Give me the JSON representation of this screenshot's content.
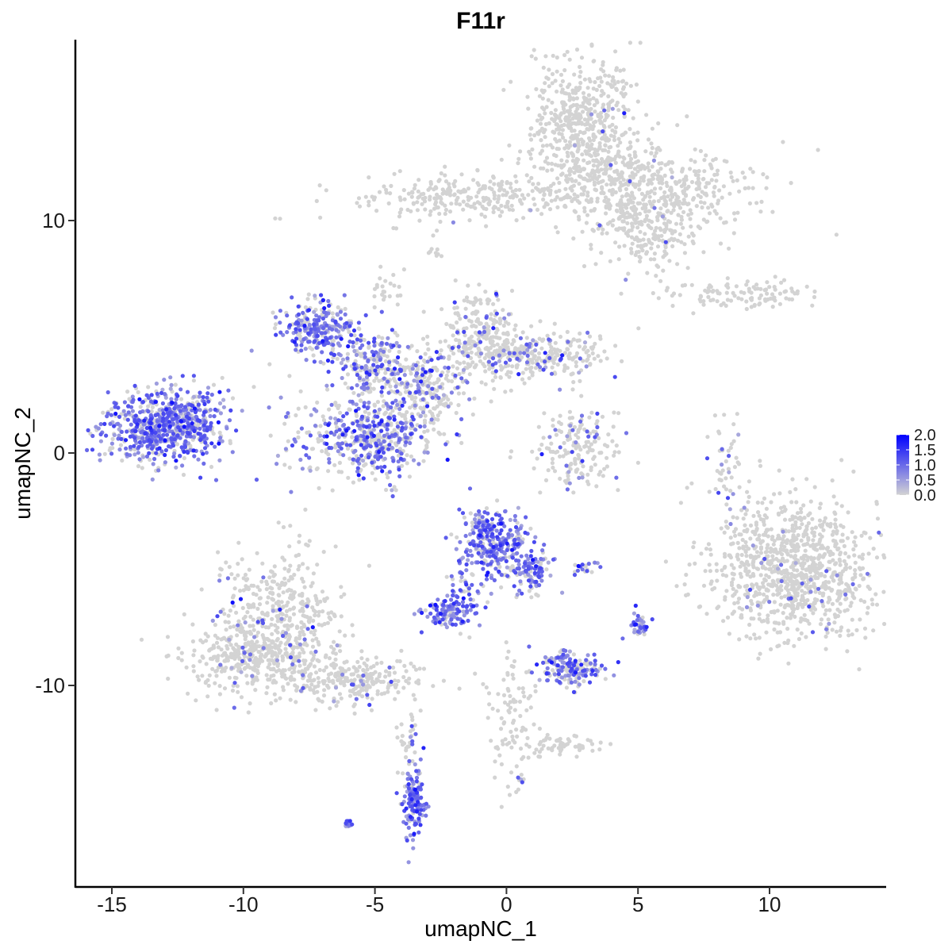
{
  "chart_data": {
    "type": "scatter",
    "title": "F11r",
    "xlabel": "umapNC_1",
    "ylabel": "umapNC_2",
    "xlim": [
      -16.5,
      14.5
    ],
    "ylim": [
      -18.5,
      17.5
    ],
    "x_ticks": [
      -15,
      -10,
      -5,
      0,
      5,
      10
    ],
    "x_tick_labels": [
      "-15",
      "-10",
      "-5",
      "0",
      "5",
      "10"
    ],
    "y_ticks": [
      -10,
      0,
      10
    ],
    "y_tick_labels": [
      "-10",
      "0",
      "10"
    ],
    "grid": false,
    "color_scale": {
      "low": "#d3d3d3",
      "high": "#0000ff",
      "min": 0.0,
      "max": 2.0,
      "breaks": [
        2.0,
        1.5,
        1.0,
        0.5,
        0.0
      ],
      "break_labels": [
        "2.0",
        "1.5",
        "1.0",
        "0.5",
        "0.0"
      ],
      "legend_position": "right"
    },
    "clusters": [
      {
        "cx": 3.0,
        "cy": 14.3,
        "sx": 1.0,
        "sy": 1.6,
        "n": 520,
        "expr": 0.02
      },
      {
        "cx": 5.0,
        "cy": 11.6,
        "sx": 2.2,
        "sy": 0.9,
        "n": 500,
        "expr": 0.02
      },
      {
        "cx": -1.5,
        "cy": 11.0,
        "sx": 2.4,
        "sy": 0.5,
        "n": 260,
        "expr": 0.02
      },
      {
        "cx": 5.5,
        "cy": 9.5,
        "sx": 1.2,
        "sy": 0.8,
        "n": 220,
        "expr": 0.03
      },
      {
        "cx": 9.0,
        "cy": 6.8,
        "sx": 1.6,
        "sy": 0.3,
        "n": 110,
        "expr": 0.0
      },
      {
        "cx": -13.2,
        "cy": 1.1,
        "sx": 1.1,
        "sy": 0.8,
        "n": 620,
        "expr": 0.72
      },
      {
        "cx": -11.8,
        "cy": 1.4,
        "sx": 0.5,
        "sy": 0.8,
        "n": 120,
        "expr": 0.65
      },
      {
        "cx": -7.1,
        "cy": 5.3,
        "sx": 0.8,
        "sy": 0.6,
        "n": 260,
        "expr": 0.68
      },
      {
        "cx": -5.0,
        "cy": 3.8,
        "sx": 0.7,
        "sy": 0.6,
        "n": 190,
        "expr": 0.5
      },
      {
        "cx": -5.6,
        "cy": 0.9,
        "sx": 1.4,
        "sy": 1.0,
        "n": 360,
        "expr": 0.42
      },
      {
        "cx": -4.6,
        "cy": 0.6,
        "sx": 0.7,
        "sy": 0.8,
        "n": 170,
        "expr": 0.62
      },
      {
        "cx": -3.0,
        "cy": 3.0,
        "sx": 0.8,
        "sy": 0.9,
        "n": 240,
        "expr": 0.24
      },
      {
        "cx": -1.0,
        "cy": 5.0,
        "sx": 0.7,
        "sy": 1.0,
        "n": 210,
        "expr": 0.12
      },
      {
        "cx": 1.0,
        "cy": 4.2,
        "sx": 1.5,
        "sy": 0.5,
        "n": 300,
        "expr": 0.15
      },
      {
        "cx": 2.8,
        "cy": 0.2,
        "sx": 0.8,
        "sy": 0.9,
        "n": 170,
        "expr": 0.15
      },
      {
        "cx": 11.0,
        "cy": -5.0,
        "sx": 1.6,
        "sy": 1.5,
        "n": 1000,
        "expr": 0.03
      },
      {
        "cx": 8.3,
        "cy": -0.5,
        "sx": 0.3,
        "sy": 1.0,
        "n": 40,
        "expr": 0.12
      },
      {
        "cx": -0.5,
        "cy": -3.8,
        "sx": 0.6,
        "sy": 0.8,
        "n": 280,
        "expr": 0.78
      },
      {
        "cx": 0.9,
        "cy": -4.9,
        "sx": 0.5,
        "sy": 0.6,
        "n": 110,
        "expr": 0.68
      },
      {
        "cx": -2.3,
        "cy": -6.9,
        "sx": 0.5,
        "sy": 0.3,
        "n": 110,
        "expr": 0.85
      },
      {
        "cx": -1.6,
        "cy": -5.8,
        "sx": 0.4,
        "sy": 0.8,
        "n": 50,
        "expr": 0.72
      },
      {
        "cx": 2.4,
        "cy": -9.3,
        "sx": 0.6,
        "sy": 0.4,
        "n": 170,
        "expr": 0.58
      },
      {
        "cx": 5.0,
        "cy": -7.4,
        "sx": 0.2,
        "sy": 0.3,
        "n": 40,
        "expr": 0.78
      },
      {
        "cx": 3.0,
        "cy": -5.0,
        "sx": 0.3,
        "sy": 0.15,
        "n": 20,
        "expr": 0.72
      },
      {
        "cx": -8.6,
        "cy": -7.0,
        "sx": 1.2,
        "sy": 1.4,
        "n": 420,
        "expr": 0.07
      },
      {
        "cx": -9.8,
        "cy": -9.0,
        "sx": 1.4,
        "sy": 0.7,
        "n": 300,
        "expr": 0.07
      },
      {
        "cx": -6.0,
        "cy": -9.8,
        "sx": 1.4,
        "sy": 0.5,
        "n": 260,
        "expr": 0.06
      },
      {
        "cx": -3.5,
        "cy": -15.0,
        "sx": 0.2,
        "sy": 0.7,
        "n": 130,
        "expr": 0.88
      },
      {
        "cx": -3.7,
        "cy": -12.5,
        "sx": 0.25,
        "sy": 1.0,
        "n": 40,
        "expr": 0.2
      },
      {
        "cx": -6.0,
        "cy": -16.0,
        "sx": 0.1,
        "sy": 0.08,
        "n": 14,
        "expr": 1.0
      },
      {
        "cx": 0.2,
        "cy": -11.5,
        "sx": 0.5,
        "sy": 1.4,
        "n": 90,
        "expr": 0.0
      },
      {
        "cx": 2.0,
        "cy": -12.6,
        "sx": 0.8,
        "sy": 0.3,
        "n": 60,
        "expr": 0.0
      },
      {
        "cx": 0.6,
        "cy": -14.1,
        "sx": 0.08,
        "sy": 0.08,
        "n": 8,
        "expr": 0.55
      },
      {
        "cx": -4.5,
        "cy": 7.0,
        "sx": 0.3,
        "sy": 0.4,
        "n": 24,
        "expr": 0.02
      },
      {
        "cx": -2.7,
        "cy": 8.8,
        "sx": 0.1,
        "sy": 0.35,
        "n": 10,
        "expr": 0.0
      }
    ]
  }
}
